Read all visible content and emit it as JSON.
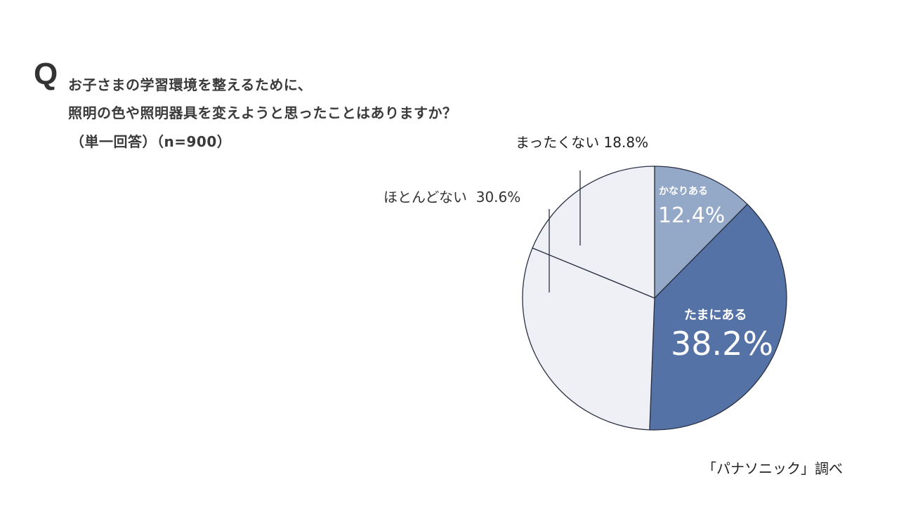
{
  "question": {
    "mark": "Q",
    "line1": "お子さまの学習環境を整えるために、",
    "line2": "照明の色や照明器具を変えようと思ったことはありますか？",
    "line3": "（単一回答）（n=900）"
  },
  "labels": {
    "kanari_name": "かなりある",
    "kanari_value": "12.4%",
    "tamani_name": "たまにある",
    "tamani_value": "38.2%",
    "hotondo": "ほとんどない  30.6%",
    "mattaku": "まったくない 18.8%"
  },
  "source": "「パナソニック」調べ",
  "colors": {
    "kanari": "#94a8c8",
    "tamani": "#5472a6",
    "hotondo": "#eef0f5",
    "mattaku": "#eef0f5",
    "stroke": "#2b3142"
  },
  "chart_data": {
    "type": "pie",
    "title": "お子さまの学習環境を整えるために、照明の色や照明器具を変えようと思ったことはありますか？（単一回答）（n=900）",
    "categories": [
      "かなりある",
      "たまにある",
      "ほとんどない",
      "まったくない"
    ],
    "values": [
      12.4,
      38.2,
      30.6,
      18.8
    ],
    "unit": "%",
    "n": 900,
    "start_angle": "12 o'clock",
    "direction": "clockwise",
    "source": "「パナソニック」調べ"
  }
}
